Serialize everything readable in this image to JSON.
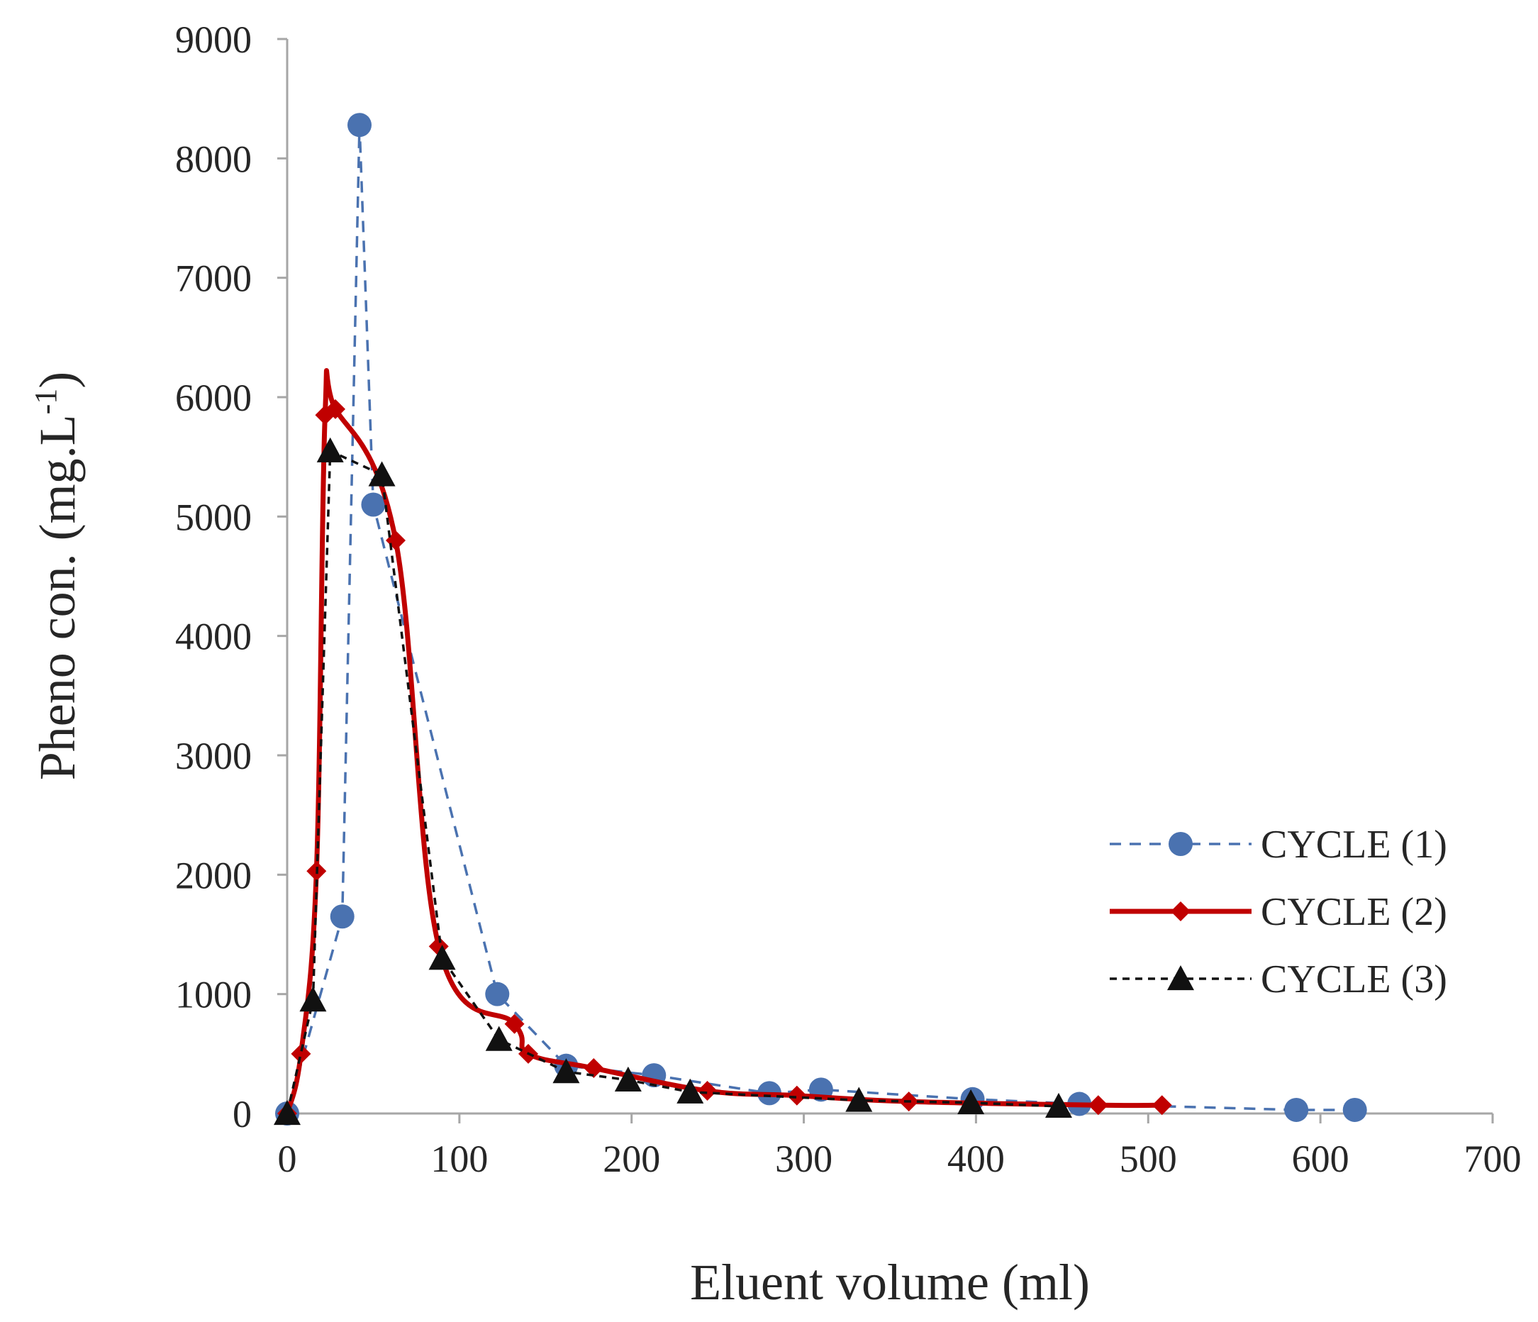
{
  "chart_data": {
    "type": "line",
    "title": "",
    "xlabel": "Eluent volume (ml)",
    "ylabel_main": "Pheno con. (mg.L",
    "ylabel_sup": "-1",
    "ylabel_close": ")",
    "xlim": [
      0,
      700
    ],
    "ylim": [
      0,
      9000
    ],
    "xticks": [
      "0",
      "100",
      "200",
      "300",
      "400",
      "500",
      "600",
      "700"
    ],
    "yticks": [
      "0",
      "1000",
      "2000",
      "3000",
      "4000",
      "5000",
      "6000",
      "7000",
      "8000",
      "9000"
    ],
    "xtick_values": [
      0,
      100,
      200,
      300,
      400,
      500,
      600,
      700
    ],
    "ytick_values": [
      0,
      1000,
      2000,
      3000,
      4000,
      5000,
      6000,
      7000,
      8000,
      9000
    ],
    "grid": false,
    "legend_position": "right",
    "series": [
      {
        "name": "CYCLE (1)",
        "color": "#4a72b0",
        "line_style": "dashed",
        "marker": "circle",
        "smooth": false,
        "points": [
          [
            0,
            0
          ],
          [
            32,
            1650
          ],
          [
            42,
            8280
          ],
          [
            50,
            5100
          ],
          [
            122,
            1000
          ],
          [
            162,
            400
          ],
          [
            213,
            320
          ],
          [
            280,
            170
          ],
          [
            310,
            200
          ],
          [
            398,
            120
          ],
          [
            460,
            80
          ],
          [
            586,
            30
          ],
          [
            620,
            30
          ]
        ]
      },
      {
        "name": "CYCLE (2)",
        "color": "#c00000",
        "line_style": "solid",
        "marker": "diamond",
        "smooth": true,
        "points": [
          [
            0,
            0
          ],
          [
            8,
            500
          ],
          [
            17,
            2030
          ],
          [
            22,
            5850
          ],
          [
            28,
            5900
          ],
          [
            63,
            4800
          ],
          [
            88,
            1400
          ],
          [
            132,
            750
          ],
          [
            140,
            500
          ],
          [
            178,
            380
          ],
          [
            244,
            190
          ],
          [
            296,
            150
          ],
          [
            361,
            100
          ],
          [
            471,
            70
          ],
          [
            508,
            70
          ]
        ]
      },
      {
        "name": "CYCLE (3)",
        "color": "#111111",
        "line_style": "dashed",
        "marker": "triangle",
        "smooth": false,
        "points": [
          [
            0,
            0
          ],
          [
            15,
            950
          ],
          [
            25,
            5550
          ],
          [
            55,
            5350
          ],
          [
            90,
            1300
          ],
          [
            123,
            620
          ],
          [
            162,
            350
          ],
          [
            198,
            280
          ],
          [
            234,
            180
          ],
          [
            332,
            110
          ],
          [
            397,
            90
          ],
          [
            448,
            60
          ]
        ]
      }
    ]
  }
}
